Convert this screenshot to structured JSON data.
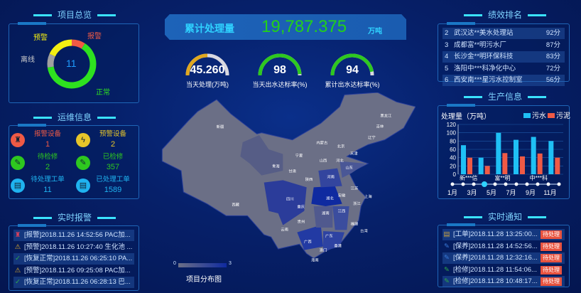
{
  "overview": {
    "title": "项目总览",
    "total": "11",
    "segments": [
      {
        "label": "报警",
        "value": 1,
        "color": "#ef5a45"
      },
      {
        "label": "正常",
        "value": 7,
        "color": "#2ee21f"
      },
      {
        "label": "离线",
        "value": 1,
        "color": "#a0a0a0"
      },
      {
        "label": "预警",
        "value": 2,
        "color": "#f3ee12"
      }
    ]
  },
  "ops": {
    "title": "运维信息",
    "items": [
      {
        "label": "报警设备",
        "value": "1",
        "color": "#ef5a45",
        "icon": "alarm-icon"
      },
      {
        "label": "预警设备",
        "value": "2",
        "color": "#e6c52a",
        "icon": "lightning-icon"
      },
      {
        "label": "待检修",
        "value": "2",
        "color": "#2ec81f",
        "icon": "wrench-icon"
      },
      {
        "label": "已检修",
        "value": "357",
        "color": "#2ec81f",
        "icon": "wrench-icon"
      },
      {
        "label": "待处理工单",
        "value": "11",
        "color": "#1fb3f0",
        "icon": "document-icon"
      },
      {
        "label": "已处理工单",
        "value": "1589",
        "color": "#1fb3f0",
        "icon": "document-icon"
      }
    ]
  },
  "alarms": {
    "title": "实时报警",
    "items": [
      {
        "text": "[报警]2018.11.26 14:52:56 PAC加...",
        "icon": "alarm-icon",
        "color": "#e0405a"
      },
      {
        "text": "[预警]2018.11.26 10:27:40 生化池 ...",
        "icon": "warning-icon",
        "color": "#d8a830"
      },
      {
        "text": "[恢复正常]2018.11.26 06:25:10 PA...",
        "icon": "check-icon",
        "color": "#2fa84a"
      },
      {
        "text": "[预警]2018.11.26 09:25:08 PAC加...",
        "icon": "warning-icon",
        "color": "#d8a830"
      },
      {
        "text": "[恢复正常]2018.11.26 06:28:13 巴...",
        "icon": "check-icon",
        "color": "#2fa84a"
      }
    ]
  },
  "summary": {
    "label": "累计处理量",
    "value": "19,787.375",
    "unit": "万吨"
  },
  "gauges": [
    {
      "value": "45.260",
      "label": "当天处理(万吨)",
      "fraction": 0.5,
      "color": "#e0a820"
    },
    {
      "value": "98",
      "label": "当天出水达标率(%)",
      "fraction": 0.98,
      "color": "#2ec81f"
    },
    {
      "value": "94",
      "label": "累计出水达标率(%)",
      "fraction": 0.94,
      "color": "#2ec81f"
    }
  ],
  "map": {
    "title": "项目分布图",
    "legend_min": "0",
    "legend_max": "3",
    "labels": [
      "新疆",
      "西藏",
      "青海",
      "甘肃",
      "宁夏",
      "内蒙古",
      "黑龙江",
      "吉林",
      "辽宁",
      "北京",
      "天津",
      "河北",
      "山西",
      "山东",
      "河南",
      "陕西",
      "四川",
      "重庆",
      "湖北",
      "安徽",
      "江苏",
      "上海",
      "浙江",
      "湖南",
      "江西",
      "贵州",
      "云南",
      "广西",
      "广东",
      "福建",
      "台湾",
      "澳门",
      "香港",
      "海南"
    ]
  },
  "ranking": {
    "title": "绩效排名",
    "items": [
      {
        "rank": "2",
        "name": "武汉达**美水处理站",
        "score": "92分"
      },
      {
        "rank": "3",
        "name": "成都富**明污水厂",
        "score": "87分"
      },
      {
        "rank": "4",
        "name": "长沙金**明环保科技",
        "score": "83分"
      },
      {
        "rank": "5",
        "name": "洛阳中***科净化中心",
        "score": "72分"
      },
      {
        "rank": "6",
        "name": "西安南***星污水控制室",
        "score": "56分"
      }
    ]
  },
  "production": {
    "title": "生产信息",
    "timeline": [
      "1月",
      "3月",
      "5月",
      "7月",
      "9月",
      "11月"
    ],
    "active_month": "4月"
  },
  "chart_data": {
    "type": "bar",
    "title": "处理量（万吨）",
    "ylim": [
      0,
      120
    ],
    "yticks": [
      0,
      20,
      40,
      60,
      80,
      100,
      120
    ],
    "categories": [
      "新***信",
      "",
      "富**明",
      "",
      "中***科",
      ""
    ],
    "series": [
      {
        "name": "污水",
        "color": "#1fc0f5",
        "values": [
          70,
          40,
          100,
          83,
          90,
          80
        ]
      },
      {
        "name": "污泥",
        "color": "#ef5a45",
        "values": [
          40,
          20,
          51,
          43,
          50,
          40
        ]
      }
    ],
    "legend": "top-right",
    "grid": true
  },
  "notices": {
    "title": "实时通知",
    "status": "待处理",
    "items": [
      {
        "text": "[工单]2018.11.28 13:25:00...",
        "icon": "document-icon",
        "color": "#c8a040"
      },
      {
        "text": "[保养]2018.11.28 14:52:56...",
        "icon": "wrench-icon",
        "color": "#3a7ad8"
      },
      {
        "text": "[保养]2018.11.28 12:32:16...",
        "icon": "wrench-icon",
        "color": "#3a7ad8"
      },
      {
        "text": "[检修]2018.11.28 11:54:06...",
        "icon": "wrench-icon",
        "color": "#2fa84a"
      },
      {
        "text": "[检修]2018.11.28 10:48:17...",
        "icon": "wrench-icon",
        "color": "#2fa84a"
      }
    ]
  }
}
